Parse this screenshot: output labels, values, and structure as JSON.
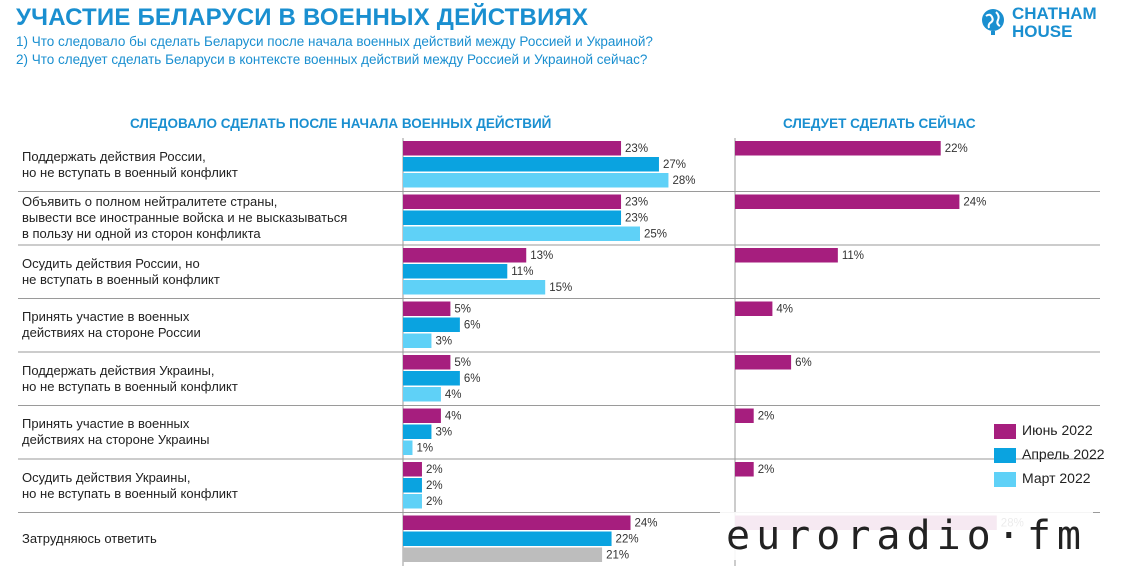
{
  "title": "УЧАСТИЕ БЕЛАРУСИ В ВОЕННЫХ ДЕЙСТВИЯХ",
  "subtitle1": "1) Что следовало бы сделать Беларуси после начала военных действий между Россией и Украиной?",
  "subtitle2": "2) Что следует сделать Беларуси в контексте военных действий между Россией и Украиной сейчас?",
  "logo": {
    "line1": "CHATHAM",
    "line2": "HOUSE",
    "icon": "globe-icon"
  },
  "watermark": "euroradio·fm",
  "colors": {
    "june": "#a61e7e",
    "april": "#0aa3e0",
    "march": "#5fd1f7",
    "undecided_march": "#bdbdbd"
  },
  "chart_data": {
    "type": "bar",
    "orientation": "horizontal",
    "panels": [
      {
        "title": "СЛЕДОВАЛО СДЕЛАТЬ ПОСЛЕ НАЧАЛА ВОЕННЫХ ДЕЙСТВИЙ",
        "series": [
          "Июнь 2022",
          "Апрель 2022",
          "Март 2022"
        ]
      },
      {
        "title": "СЛЕДУЕТ СДЕЛАТЬ СЕЙЧАС",
        "series": [
          "Июнь 2022"
        ]
      }
    ],
    "categories": [
      [
        "Поддержать действия России,",
        "но не вступать в военный конфликт"
      ],
      [
        "Объявить о полном нейтралитете страны,",
        "вывести все иностранные войска и не высказываться",
        "в пользу ни одной из сторон конфликта"
      ],
      [
        "Осудить действия России, но",
        "не вступать в военный конфликт"
      ],
      [
        "Принять участие в военных",
        "действиях на стороне России"
      ],
      [
        "Поддержать действия Украины,",
        "но не вступать в военный конфликт"
      ],
      [
        "Принять участие в военных",
        "действиях на стороне Украины"
      ],
      [
        "Осудить действия Украины,",
        "но не вступать в военный конфликт"
      ],
      [
        "Затрудняюсь ответить"
      ]
    ],
    "past": {
      "june": [
        23,
        23,
        13,
        5,
        5,
        4,
        2,
        24
      ],
      "april": [
        27,
        23,
        11,
        6,
        6,
        3,
        2,
        22
      ],
      "march": [
        28,
        25,
        15,
        3,
        4,
        1,
        2,
        21
      ]
    },
    "now": {
      "june": [
        22,
        24,
        11,
        4,
        6,
        2,
        2,
        28
      ]
    },
    "value_suffix": "%",
    "legend": [
      {
        "name": "Июнь 2022",
        "key": "june"
      },
      {
        "name": "Апрель 2022",
        "key": "april"
      },
      {
        "name": "Март 2022",
        "key": "march"
      }
    ],
    "legend_position": "bottom-right",
    "grid": false
  }
}
